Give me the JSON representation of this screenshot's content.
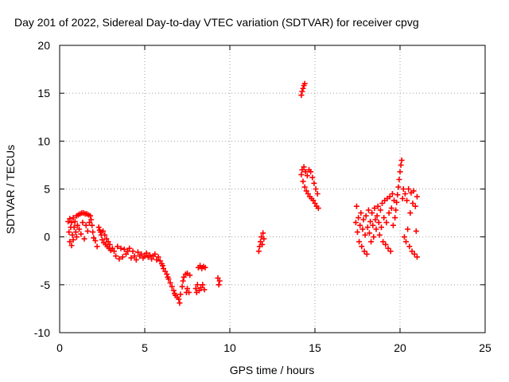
{
  "chart_data": {
    "type": "scatter",
    "title": "Day 201 of 2022, Sidereal Day-to-day VTEC variation (SDTVAR) for receiver cpvg",
    "xlabel": "GPS time / hours",
    "ylabel": "SDTVAR / TECUs",
    "xlim": [
      0,
      25
    ],
    "ylim": [
      -10,
      20
    ],
    "xticks": [
      0,
      5,
      10,
      15,
      20,
      25
    ],
    "yticks": [
      -10,
      -5,
      0,
      5,
      10,
      15,
      20
    ],
    "xtick_labels": [
      "0",
      "5",
      "10",
      "15",
      "20",
      "25"
    ],
    "ytick_labels": [
      "-10",
      "-5",
      "0",
      "5",
      "10",
      "15",
      "20"
    ],
    "grid": true,
    "marker": "+",
    "color": "#ff0000",
    "series": [
      {
        "name": "SDTVAR",
        "points": [
          [
            0.5,
            1.6
          ],
          [
            0.55,
            0.5
          ],
          [
            0.6,
            -0.5
          ],
          [
            0.6,
            1.9
          ],
          [
            0.65,
            1.0
          ],
          [
            0.7,
            -0.9
          ],
          [
            0.7,
            1.5
          ],
          [
            0.75,
            0.2
          ],
          [
            0.8,
            2.0
          ],
          [
            0.8,
            -0.3
          ],
          [
            0.85,
            1.0
          ],
          [
            0.9,
            1.6
          ],
          [
            0.95,
            0.5
          ],
          [
            1.0,
            2.2
          ],
          [
            1.0,
            0.0
          ],
          [
            1.05,
            1.2
          ],
          [
            1.1,
            2.3
          ],
          [
            1.15,
            0.8
          ],
          [
            1.2,
            2.4
          ],
          [
            1.25,
            0.3
          ],
          [
            1.3,
            2.5
          ],
          [
            1.35,
            1.5
          ],
          [
            1.4,
            2.5
          ],
          [
            1.45,
            -0.2
          ],
          [
            1.5,
            2.4
          ],
          [
            1.55,
            1.2
          ],
          [
            1.6,
            2.4
          ],
          [
            1.65,
            0.6
          ],
          [
            1.7,
            2.3
          ],
          [
            1.75,
            1.5
          ],
          [
            1.8,
            2.2
          ],
          [
            1.85,
            1.8
          ],
          [
            1.9,
            1.2
          ],
          [
            1.95,
            0.5
          ],
          [
            2.0,
            -0.1
          ],
          [
            2.1,
            -0.4
          ],
          [
            2.2,
            -1.0
          ],
          [
            2.3,
            1.0
          ],
          [
            2.35,
            0.7
          ],
          [
            2.4,
            0.5
          ],
          [
            2.45,
            0.2
          ],
          [
            2.5,
            -0.3
          ],
          [
            2.55,
            0.6
          ],
          [
            2.6,
            -0.6
          ],
          [
            2.65,
            0.2
          ],
          [
            2.7,
            -0.8
          ],
          [
            2.75,
            -0.2
          ],
          [
            2.8,
            -1.0
          ],
          [
            2.85,
            -0.5
          ],
          [
            2.9,
            -1.2
          ],
          [
            2.95,
            -0.8
          ],
          [
            3.0,
            -1.4
          ],
          [
            3.1,
            -1.2
          ],
          [
            3.2,
            -1.5
          ],
          [
            3.3,
            -2.0
          ],
          [
            3.4,
            -1.0
          ],
          [
            3.5,
            -2.3
          ],
          [
            3.6,
            -1.2
          ],
          [
            3.7,
            -2.1
          ],
          [
            3.8,
            -1.3
          ],
          [
            3.9,
            -1.8
          ],
          [
            4.0,
            -1.5
          ],
          [
            4.1,
            -1.2
          ],
          [
            4.2,
            -2.2
          ],
          [
            4.3,
            -1.5
          ],
          [
            4.4,
            -2.0
          ],
          [
            4.5,
            -2.4
          ],
          [
            4.6,
            -1.6
          ],
          [
            4.7,
            -2.0
          ],
          [
            4.8,
            -1.8
          ],
          [
            4.9,
            -2.2
          ],
          [
            5.0,
            -2.0
          ],
          [
            5.1,
            -1.7
          ],
          [
            5.2,
            -2.1
          ],
          [
            5.3,
            -1.9
          ],
          [
            5.4,
            -2.3
          ],
          [
            5.5,
            -2.0
          ],
          [
            5.6,
            -1.8
          ],
          [
            5.7,
            -2.4
          ],
          [
            5.8,
            -2.1
          ],
          [
            5.9,
            -2.5
          ],
          [
            6.0,
            -2.8
          ],
          [
            6.05,
            -3.0
          ],
          [
            6.1,
            -3.3
          ],
          [
            6.2,
            -3.6
          ],
          [
            6.3,
            -3.9
          ],
          [
            6.35,
            -4.2
          ],
          [
            6.4,
            -4.4
          ],
          [
            6.5,
            -4.8
          ],
          [
            6.6,
            -5.2
          ],
          [
            6.7,
            -5.6
          ],
          [
            6.75,
            -5.9
          ],
          [
            6.8,
            -6.1
          ],
          [
            6.9,
            -6.3
          ],
          [
            7.0,
            -6.5
          ],
          [
            7.05,
            -6.9
          ],
          [
            7.1,
            -6.0
          ],
          [
            7.2,
            -5.2
          ],
          [
            7.25,
            -4.6
          ],
          [
            7.3,
            -4.2
          ],
          [
            7.4,
            -3.9
          ],
          [
            7.45,
            -5.8
          ],
          [
            7.5,
            -5.4
          ],
          [
            7.5,
            -3.8
          ],
          [
            7.6,
            -5.8
          ],
          [
            7.65,
            -4.0
          ],
          [
            8.0,
            -5.4
          ],
          [
            8.05,
            -5.8
          ],
          [
            8.1,
            -5.0
          ],
          [
            8.15,
            -3.2
          ],
          [
            8.2,
            -5.6
          ],
          [
            8.25,
            -3.0
          ],
          [
            8.3,
            -5.3
          ],
          [
            8.35,
            -3.3
          ],
          [
            8.4,
            -5.0
          ],
          [
            8.45,
            -3.1
          ],
          [
            8.5,
            -5.5
          ],
          [
            8.55,
            -3.2
          ],
          [
            9.3,
            -4.3
          ],
          [
            9.35,
            -5.0
          ],
          [
            9.4,
            -4.6
          ],
          [
            11.7,
            -1.5
          ],
          [
            11.75,
            -1.0
          ],
          [
            11.8,
            -0.5
          ],
          [
            11.85,
            0.0
          ],
          [
            11.9,
            -0.8
          ],
          [
            11.95,
            0.4
          ],
          [
            12.0,
            -0.2
          ],
          [
            14.2,
            14.8
          ],
          [
            14.25,
            15.2
          ],
          [
            14.3,
            15.5
          ],
          [
            14.35,
            15.8
          ],
          [
            14.4,
            16.0
          ],
          [
            14.2,
            6.5
          ],
          [
            14.25,
            7.0
          ],
          [
            14.3,
            5.8
          ],
          [
            14.35,
            7.3
          ],
          [
            14.4,
            5.2
          ],
          [
            14.45,
            6.8
          ],
          [
            14.5,
            4.8
          ],
          [
            14.55,
            6.4
          ],
          [
            14.6,
            4.5
          ],
          [
            14.65,
            7.0
          ],
          [
            14.7,
            4.2
          ],
          [
            14.75,
            6.8
          ],
          [
            14.8,
            4.0
          ],
          [
            14.85,
            6.2
          ],
          [
            14.9,
            3.8
          ],
          [
            14.95,
            5.6
          ],
          [
            15.0,
            3.5
          ],
          [
            15.05,
            5.0
          ],
          [
            15.1,
            3.2
          ],
          [
            15.15,
            4.5
          ],
          [
            15.2,
            3.0
          ],
          [
            17.4,
            1.5
          ],
          [
            17.45,
            3.2
          ],
          [
            17.5,
            0.5
          ],
          [
            17.55,
            2.0
          ],
          [
            17.6,
            -0.5
          ],
          [
            17.65,
            1.2
          ],
          [
            17.7,
            2.5
          ],
          [
            17.75,
            -1.0
          ],
          [
            17.8,
            0.8
          ],
          [
            17.85,
            1.8
          ],
          [
            17.9,
            -1.5
          ],
          [
            17.95,
            0.2
          ],
          [
            18.0,
            2.2
          ],
          [
            18.05,
            -1.8
          ],
          [
            18.1,
            1.0
          ],
          [
            18.15,
            2.8
          ],
          [
            18.2,
            0.4
          ],
          [
            18.25,
            1.6
          ],
          [
            18.3,
            -0.5
          ],
          [
            18.35,
            2.5
          ],
          [
            18.4,
            1.2
          ],
          [
            18.45,
            0.0
          ],
          [
            18.5,
            3.0
          ],
          [
            18.55,
            1.8
          ],
          [
            18.6,
            0.8
          ],
          [
            18.65,
            2.2
          ],
          [
            18.7,
            3.2
          ],
          [
            18.75,
            1.5
          ],
          [
            18.8,
            0.2
          ],
          [
            18.85,
            2.8
          ],
          [
            18.9,
            1.0
          ],
          [
            18.95,
            3.5
          ],
          [
            19.0,
            -0.5
          ],
          [
            19.05,
            2.0
          ],
          [
            19.1,
            3.8
          ],
          [
            19.15,
            -0.8
          ],
          [
            19.2,
            1.5
          ],
          [
            19.25,
            4.0
          ],
          [
            19.3,
            -1.2
          ],
          [
            19.35,
            2.5
          ],
          [
            19.4,
            4.2
          ],
          [
            19.45,
            -1.5
          ],
          [
            19.5,
            3.0
          ],
          [
            19.55,
            4.5
          ],
          [
            19.6,
            1.2
          ],
          [
            19.65,
            3.8
          ],
          [
            19.7,
            2.0
          ],
          [
            19.75,
            2.8
          ],
          [
            19.8,
            3.6
          ],
          [
            19.85,
            4.4
          ],
          [
            19.9,
            5.2
          ],
          [
            19.95,
            6.0
          ],
          [
            20.0,
            6.8
          ],
          [
            20.05,
            7.5
          ],
          [
            20.1,
            8.0
          ],
          [
            20.15,
            4.0
          ],
          [
            20.2,
            5.0
          ],
          [
            20.25,
            0.0
          ],
          [
            20.3,
            4.5
          ],
          [
            20.35,
            -0.5
          ],
          [
            20.4,
            3.8
          ],
          [
            20.45,
            0.8
          ],
          [
            20.5,
            5.0
          ],
          [
            20.55,
            -1.0
          ],
          [
            20.6,
            2.5
          ],
          [
            20.65,
            4.6
          ],
          [
            20.7,
            -1.5
          ],
          [
            20.75,
            3.5
          ],
          [
            20.8,
            4.8
          ],
          [
            20.85,
            -1.8
          ],
          [
            20.9,
            3.2
          ],
          [
            20.95,
            0.6
          ],
          [
            21.0,
            -2.1
          ],
          [
            21.0,
            4.2
          ]
        ]
      }
    ]
  }
}
